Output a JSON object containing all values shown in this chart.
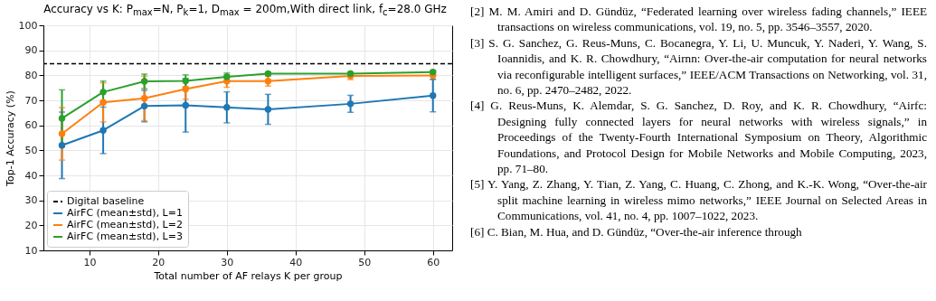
{
  "chart_data": {
    "type": "line",
    "title": "Accuracy vs K: P$_{max}$=N, P$_{k}$=1, D$_{max}$ = 200m,With direct link, f$_{c}$=28.0 GHz",
    "xlabel": "Total number of AF relays K per group",
    "ylabel": "Top-1 Accuracy (%)",
    "x": [
      6,
      12,
      18,
      24,
      30,
      36,
      48,
      60
    ],
    "series": [
      {
        "name": "AirFC (mean±std), L=1",
        "color": "#1f77b4",
        "values": [
          52.0,
          58.0,
          67.7,
          68.0,
          67.2,
          66.4,
          68.6,
          71.9
        ],
        "errors": [
          13.3,
          9.3,
          6.3,
          10.7,
          6.2,
          6.0,
          3.4,
          6.5
        ]
      },
      {
        "name": "AirFC (mean±std), L=2",
        "color": "#ff7f0e",
        "values": [
          56.6,
          69.2,
          70.8,
          74.5,
          77.7,
          77.7,
          79.8,
          79.9
        ],
        "errors": [
          10.5,
          7.8,
          8.9,
          4.0,
          2.5,
          2.0,
          1.5,
          1.5
        ]
      },
      {
        "name": "AirFC (mean±std), L=3",
        "color": "#2ca02c",
        "values": [
          62.8,
          73.3,
          77.6,
          77.8,
          79.4,
          80.7,
          80.7,
          81.3
        ],
        "errors": [
          11.4,
          4.4,
          2.9,
          2.4,
          1.5,
          0.5,
          0.5,
          0.5
        ]
      }
    ],
    "ref_lines": [
      {
        "axis": "y",
        "value": 84.6,
        "label": "Digital baseline",
        "color": "#000000",
        "line_style": "dashed"
      }
    ],
    "xlim": [
      3.3,
      62.8
    ],
    "xticks": [
      10,
      20,
      30,
      40,
      50,
      60
    ],
    "ylim": [
      10,
      100
    ],
    "yticks": [
      10,
      20,
      30,
      40,
      50,
      60,
      70,
      80,
      90,
      100
    ],
    "grid": true,
    "legend": "bottom left",
    "marker": "circle",
    "line_style": "solid",
    "annotations": [
      "[2] M. M. Amiri and D. Gündüz, “Federated learning over wireless fading channels,” IEEE transactions on wireless communications, vol. 19, no. 5, pp. 3546–3557, 2020.",
      "[3] S. G. Sanchez, G. Reus-Muns, C. Bocanegra, Y. Li, U. Muncuk, Y. Naderi, Y. Wang, S. Ioannidis, and K. R. Chowdhury, “Airnn: Over-the-air computation for neural networks via reconfigurable intelligent surfaces,” IEEE/ACM Transactions on Networking, vol. 31, no. 6, pp. 2470–2482, 2022.",
      "[4] G. Reus-Muns, K. Alemdar, S. G. Sanchez, D. Roy, and K. R. Chowdhury, “Airfc: Designing fully connected layers for neural networks with wireless signals,” in Proceedings of the Twenty-Fourth International Symposium on Theory, Algorithmic Foundations, and Protocol Design for Mobile Networks and Mobile Computing, 2023, pp. 71–80.",
      "[5] Y. Yang, Z. Zhang, Y. Tian, Z. Yang, C. Huang, C. Zhong, and K.-K. Wong, “Over-the-air split machine learning in wireless mimo networks,” IEEE Journal on Selected Areas in Communications, vol. 41, no. 4, pp. 1007–1022, 2023.",
      "[6] C. Bian, M. Hua, and D. Gündüz, “Over-the-air inference through"
    ]
  }
}
